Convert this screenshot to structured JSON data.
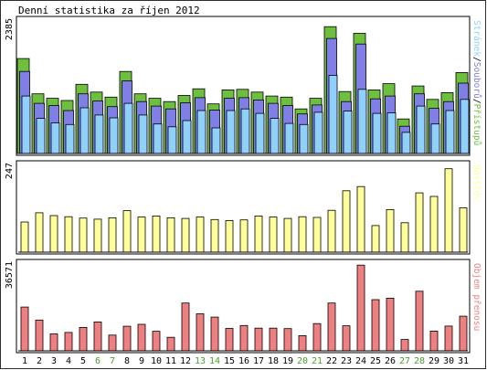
{
  "chart_data": {
    "type": "bar",
    "title": "Denní statistika za říjen 2012",
    "categories": [
      "1",
      "2",
      "3",
      "4",
      "5",
      "6",
      "7",
      "8",
      "9",
      "10",
      "11",
      "12",
      "13",
      "14",
      "15",
      "16",
      "17",
      "18",
      "19",
      "20",
      "21",
      "22",
      "23",
      "24",
      "25",
      "26",
      "27",
      "28",
      "29",
      "30",
      "31"
    ],
    "weekend_days": [
      "6",
      "7",
      "13",
      "14",
      "20",
      "21",
      "27",
      "28"
    ],
    "colors": {
      "pristupu": "#6fbf3f",
      "souboru": "#7f7fe6",
      "stranek": "#8fd0ff",
      "navstev": "#ffff99",
      "objem": "#f08080",
      "tick_weekday": "#000000",
      "tick_weekend": "#4aa02c"
    },
    "panels": {
      "requests": {
        "ymax_label": "2385",
        "ymax": 2385,
        "legend": {
          "stranek": "Stránek",
          "souboru": "Souborů",
          "pristupu": "Přístupů",
          "sep": "/"
        },
        "series": [
          {
            "name": "Přístupů",
            "key": "pristupu",
            "values": [
              1730,
              1100,
              1020,
              980,
              1270,
              1130,
              1040,
              1500,
              1100,
              1020,
              960,
              1070,
              1190,
              920,
              1170,
              1180,
              1130,
              1060,
              1040,
              830,
              1020,
              2300,
              1140,
              2180,
              1170,
              1280,
              650,
              1240,
              1000,
              1120,
              1480
            ]
          },
          {
            "name": "Souborů",
            "key": "souboru",
            "values": [
              1500,
              930,
              890,
              800,
              1100,
              970,
              870,
              1330,
              960,
              880,
              830,
              940,
              1030,
              810,
              1020,
              1030,
              990,
              930,
              890,
              740,
              900,
              2090,
              960,
              1990,
              1010,
              1060,
              520,
              1100,
              840,
              960,
              1290
            ]
          },
          {
            "name": "Stránek",
            "key": "stranek",
            "values": [
              1060,
              660,
              580,
              550,
              850,
              720,
              670,
              930,
              720,
              560,
              510,
              620,
              800,
              490,
              800,
              830,
              750,
              660,
              570,
              550,
              770,
              1430,
              790,
              1180,
              750,
              760,
              410,
              880,
              560,
              800,
              1000
            ]
          }
        ]
      },
      "visits": {
        "ymax_label": "247",
        "ymax": 247,
        "legend": "Návštěv",
        "values": [
          90,
          116,
          108,
          105,
          101,
          98,
          102,
          122,
          104,
          107,
          102,
          100,
          104,
          97,
          94,
          96,
          107,
          104,
          100,
          105,
          103,
          123,
          178,
          190,
          80,
          125,
          88,
          172,
          162,
          240,
          130
        ]
      },
      "volume": {
        "ymax_label": "36571",
        "ymax": 36571,
        "legend": "Objem přenosu",
        "values": [
          19000,
          13600,
          7800,
          8400,
          10500,
          12800,
          7300,
          11000,
          11800,
          8900,
          6400,
          20700,
          16200,
          14800,
          10100,
          11300,
          10200,
          10200,
          10000,
          7100,
          12100,
          20700,
          11200,
          36500,
          22100,
          22700,
          5500,
          25600,
          9000,
          11100,
          15200
        ]
      }
    }
  }
}
